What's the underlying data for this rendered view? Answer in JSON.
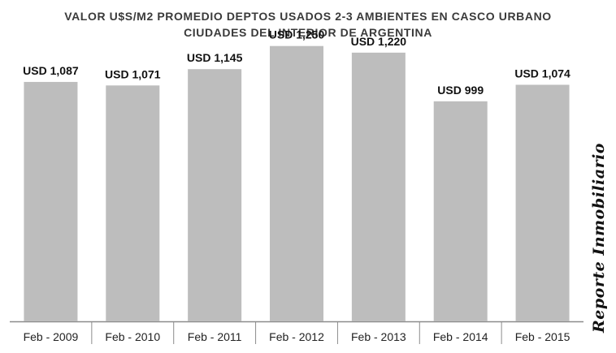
{
  "chart_data": {
    "type": "bar",
    "title": "VALOR U$S/M2 PROMEDIO DEPTOS USADOS 2-3 AMBIENTES EN CASCO URBANO",
    "subtitle": "CIUDADES DEL INTERIOR DE ARGENTINA",
    "categories": [
      "Feb - 2009",
      "Feb - 2010",
      "Feb - 2011",
      "Feb - 2012",
      "Feb - 2013",
      "Feb - 2014",
      "Feb - 2015"
    ],
    "values": [
      1087,
      1071,
      1145,
      1250,
      1220,
      999,
      1074
    ],
    "data_labels": [
      "USD 1,087",
      "USD 1,071",
      "USD 1,145",
      "USD 1,250",
      "USD 1,220",
      "USD 999",
      "USD 1,074"
    ],
    "ylim": [
      0,
      1400
    ],
    "grid": false,
    "bar_color": "#bdbdbd",
    "axis_color": "#8c8c8c",
    "xlabel": "",
    "ylabel": ""
  },
  "watermark": "Reporte Inmobiliario"
}
